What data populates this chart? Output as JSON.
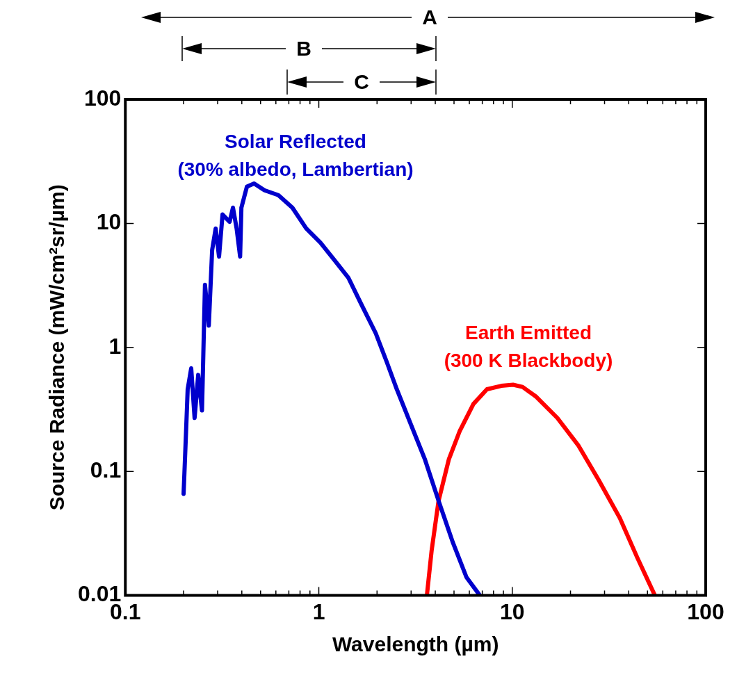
{
  "chart_data": {
    "type": "line",
    "xlabel": "Wavelength (µm)",
    "ylabel": "Source Radiance (mW/cm²sr/µm)",
    "log": "xy",
    "grid": false,
    "legend": false,
    "marker": "none",
    "line_style": "solid",
    "xlim": [
      0.1,
      100
    ],
    "ylim": [
      0.01,
      100
    ],
    "xticks": [
      0.1,
      {
        "value": 0.2,
        "label": null
      },
      {
        "value": 0.3,
        "label": null
      },
      {
        "value": 0.4,
        "label": null
      },
      {
        "value": 0.5,
        "label": null
      },
      {
        "value": 0.6,
        "label": null
      },
      {
        "value": 0.7,
        "label": null
      },
      {
        "value": 0.8,
        "label": null
      },
      {
        "value": 0.9,
        "label": null
      },
      1,
      {
        "value": 2,
        "label": null
      },
      {
        "value": 3,
        "label": null
      },
      {
        "value": 4,
        "label": null
      },
      {
        "value": 5,
        "label": null
      },
      {
        "value": 6,
        "label": null
      },
      {
        "value": 7,
        "label": null
      },
      {
        "value": 8,
        "label": null
      },
      {
        "value": 9,
        "label": null
      },
      10,
      {
        "value": 20,
        "label": null
      },
      {
        "value": 30,
        "label": null
      },
      {
        "value": 40,
        "label": null
      },
      {
        "value": 50,
        "label": null
      },
      {
        "value": 60,
        "label": null
      },
      {
        "value": 70,
        "label": null
      },
      {
        "value": 80,
        "label": null
      },
      {
        "value": 90,
        "label": null
      },
      100
    ],
    "yticks": [
      0.01,
      0.1,
      1,
      10,
      100
    ],
    "annotations": [
      "A",
      "B",
      "C"
    ],
    "series": [
      {
        "name": "Solar Reflected (30% albedo, Lambertian)",
        "color": "#0000cc",
        "x": [
          0.2,
          0.202,
          0.206,
          0.21,
          0.219,
          0.228,
          0.238,
          0.249,
          0.258,
          0.27,
          0.281,
          0.293,
          0.305,
          0.318,
          0.346,
          0.36,
          0.376,
          0.392,
          0.398,
          0.425,
          0.463,
          0.524,
          0.618,
          0.73,
          0.861,
          1.02,
          1.2,
          1.42,
          1.67,
          1.97,
          2.24,
          2.53,
          2.99,
          3.53,
          4.16,
          4.92,
          5.8,
          6.8
        ],
        "values": [
          0.066,
          0.097,
          0.21,
          0.46,
          0.68,
          0.27,
          0.6,
          0.31,
          3.2,
          1.5,
          6.1,
          9.1,
          5.4,
          11.8,
          10.3,
          13.4,
          9.1,
          5.4,
          13.4,
          19.8,
          21,
          18.5,
          16.9,
          13.4,
          9.1,
          7,
          5.1,
          3.66,
          2.18,
          1.3,
          0.77,
          0.46,
          0.24,
          0.126,
          0.058,
          0.027,
          0.014,
          0.01
        ]
      },
      {
        "name": "Earth Emitted (300 K Blackbody)",
        "color": "#ff0000",
        "x": [
          3.62,
          3.83,
          4.16,
          4.7,
          5.34,
          6.3,
          7.4,
          8.78,
          10.1,
          11.3,
          13.3,
          17.1,
          21.9,
          28,
          36,
          44.4,
          54.6
        ],
        "values": [
          0.01,
          0.023,
          0.058,
          0.125,
          0.21,
          0.35,
          0.46,
          0.49,
          0.5,
          0.48,
          0.4,
          0.27,
          0.163,
          0.085,
          0.042,
          0.02,
          0.01
        ]
      }
    ]
  }
}
